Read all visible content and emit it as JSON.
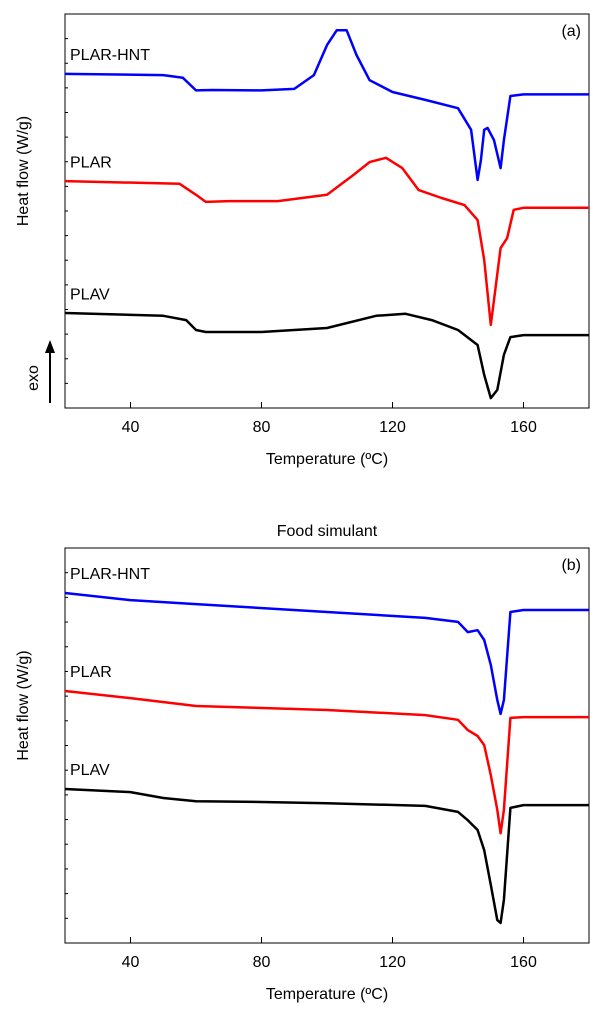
{
  "chart_data": [
    {
      "type": "line",
      "annotation": "(a)",
      "side_note": "exo",
      "x_label": "Temperature (ºC)",
      "y_label": "Heat flow (W/g)",
      "xlim": [
        20,
        180
      ],
      "xticks": [
        40,
        80,
        120,
        160
      ],
      "ylim": [
        0,
        100
      ],
      "series": [
        {
          "name": "PLAR-HNT",
          "color": "#0000ff",
          "x": [
            20,
            50,
            56,
            60,
            65,
            80,
            90,
            96,
            100,
            103,
            106,
            109,
            113,
            120,
            130,
            140,
            144,
            146,
            147,
            148,
            149,
            151,
            153,
            154,
            156,
            160,
            180
          ],
          "values": [
            84.8,
            84.5,
            83.8,
            80.6,
            80.7,
            80.6,
            81.0,
            84.5,
            92.1,
            95.9,
            95.9,
            89.6,
            83.2,
            80.2,
            78.2,
            76.1,
            70.6,
            57.9,
            62.9,
            70.6,
            71.1,
            68.0,
            60.9,
            68.0,
            79.2,
            79.6,
            79.6
          ]
        },
        {
          "name": "PLAR",
          "color": "#ff0000",
          "x": [
            20,
            55,
            60,
            63,
            70,
            85,
            100,
            108,
            113,
            118,
            123,
            128,
            135,
            142,
            146,
            148,
            150,
            151,
            153,
            155,
            157,
            160,
            180
          ],
          "values": [
            57.6,
            56.9,
            54.1,
            52.3,
            52.5,
            52.5,
            54.1,
            59.1,
            62.4,
            63.5,
            60.9,
            55.3,
            53.3,
            51.5,
            47.7,
            37.6,
            21.1,
            27.4,
            40.6,
            43.1,
            50.3,
            50.8,
            50.8
          ]
        },
        {
          "name": "PLAV",
          "color": "#000000",
          "x": [
            20,
            50,
            57,
            60,
            63,
            80,
            100,
            115,
            124,
            132,
            140,
            146,
            148,
            150,
            152,
            154,
            156,
            160,
            180
          ],
          "values": [
            24.1,
            23.4,
            22.3,
            19.8,
            19.3,
            19.3,
            20.3,
            23.4,
            23.9,
            22.3,
            19.8,
            16.0,
            8.4,
            2.5,
            4.6,
            13.5,
            18.0,
            18.5,
            18.5
          ]
        }
      ]
    },
    {
      "type": "line",
      "title": "Food simulant",
      "annotation": "(b)",
      "x_label": "Temperature (ºC)",
      "y_label": "Heat flow (W/g)",
      "xlim": [
        20,
        180
      ],
      "xticks": [
        40,
        80,
        120,
        160
      ],
      "ylim": [
        0,
        100
      ],
      "series": [
        {
          "name": "PLAR-HNT",
          "color": "#0000ff",
          "x": [
            20,
            40,
            60,
            100,
            130,
            140,
            143,
            146,
            148,
            150,
            152,
            153,
            154,
            156,
            160,
            180
          ],
          "values": [
            88.6,
            86.8,
            85.8,
            83.8,
            82.3,
            81.3,
            78.7,
            79.2,
            76.7,
            70.4,
            61.5,
            58.0,
            61.5,
            83.8,
            84.3,
            84.3
          ]
        },
        {
          "name": "PLAR",
          "color": "#ff0000",
          "x": [
            20,
            40,
            60,
            100,
            130,
            140,
            143,
            146,
            148,
            150,
            152,
            153,
            154,
            156,
            160,
            180
          ],
          "values": [
            63.8,
            62.0,
            60.0,
            59.0,
            57.7,
            56.5,
            53.9,
            52.4,
            50.1,
            42.5,
            33.7,
            27.8,
            33.7,
            57.0,
            57.2,
            57.2
          ]
        },
        {
          "name": "PLAV",
          "color": "#000000",
          "x": [
            20,
            40,
            50,
            60,
            80,
            100,
            130,
            140,
            143,
            146,
            148,
            150,
            152,
            153,
            154,
            156,
            160,
            180
          ],
          "values": [
            39.0,
            38.2,
            36.7,
            35.9,
            35.7,
            35.4,
            34.7,
            33.2,
            31.1,
            28.6,
            23.5,
            14.7,
            5.8,
            5.1,
            10.9,
            34.2,
            34.9,
            34.9
          ]
        }
      ]
    }
  ]
}
